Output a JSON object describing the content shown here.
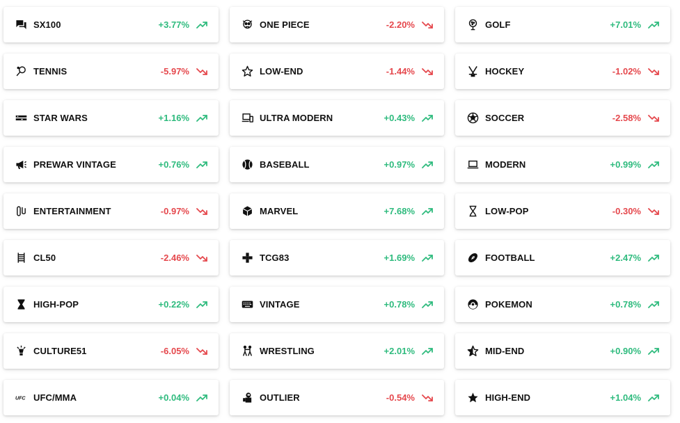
{
  "colors": {
    "up": "#2fbb7e",
    "down": "#e5484d",
    "text": "#111111",
    "card": "#ffffff"
  },
  "columns": [
    [
      {
        "name": "SX100",
        "change": "+3.77%",
        "direction": "up",
        "icon": "chat-bubbles-icon"
      },
      {
        "name": "TENNIS",
        "change": "-5.97%",
        "direction": "down",
        "icon": "tennis-racket-icon"
      },
      {
        "name": "STAR WARS",
        "change": "+1.16%",
        "direction": "up",
        "icon": "star-wars-logo-icon"
      },
      {
        "name": "PREWAR VINTAGE",
        "change": "+0.76%",
        "direction": "up",
        "icon": "megaphone-icon"
      },
      {
        "name": "ENTERTAINMENT",
        "change": "-0.97%",
        "direction": "down",
        "icon": "film-reel-icon"
      },
      {
        "name": "CL50",
        "change": "-2.46%",
        "direction": "down",
        "icon": "ladder-icon"
      },
      {
        "name": "HIGH-POP",
        "change": "+0.22%",
        "direction": "up",
        "icon": "hourglass-filled-icon"
      },
      {
        "name": "CULTURE51",
        "change": "-6.05%",
        "direction": "down",
        "icon": "lightbulb-icon"
      },
      {
        "name": "UFC/MMA",
        "change": "+0.04%",
        "direction": "up",
        "icon": "ufc-logo-icon"
      }
    ],
    [
      {
        "name": "ONE PIECE",
        "change": "-2.20%",
        "direction": "down",
        "icon": "skull-icon"
      },
      {
        "name": "LOW-END",
        "change": "-1.44%",
        "direction": "down",
        "icon": "star-outline-icon"
      },
      {
        "name": "ULTRA MODERN",
        "change": "+0.43%",
        "direction": "up",
        "icon": "devices-icon"
      },
      {
        "name": "BASEBALL",
        "change": "+0.97%",
        "direction": "up",
        "icon": "baseball-icon"
      },
      {
        "name": "MARVEL",
        "change": "+7.68%",
        "direction": "up",
        "icon": "cube-icon"
      },
      {
        "name": "TCG83",
        "change": "+1.69%",
        "direction": "up",
        "icon": "gamepad-icon"
      },
      {
        "name": "VINTAGE",
        "change": "+0.78%",
        "direction": "up",
        "icon": "keyboard-icon"
      },
      {
        "name": "WRESTLING",
        "change": "+2.01%",
        "direction": "up",
        "icon": "wrestlers-icon"
      },
      {
        "name": "OUTLIER",
        "change": "-0.54%",
        "direction": "down",
        "icon": "astronaut-icon"
      }
    ],
    [
      {
        "name": "GOLF",
        "change": "+7.01%",
        "direction": "up",
        "icon": "golf-ball-icon"
      },
      {
        "name": "HOCKEY",
        "change": "-1.02%",
        "direction": "down",
        "icon": "hockey-sticks-icon"
      },
      {
        "name": "SOCCER",
        "change": "-2.58%",
        "direction": "down",
        "icon": "soccer-ball-icon"
      },
      {
        "name": "MODERN",
        "change": "+0.99%",
        "direction": "up",
        "icon": "laptop-icon"
      },
      {
        "name": "LOW-POP",
        "change": "-0.30%",
        "direction": "down",
        "icon": "hourglass-outline-icon"
      },
      {
        "name": "FOOTBALL",
        "change": "+2.47%",
        "direction": "up",
        "icon": "football-icon"
      },
      {
        "name": "POKEMON",
        "change": "+0.78%",
        "direction": "up",
        "icon": "pokeball-icon"
      },
      {
        "name": "MID-END",
        "change": "+0.90%",
        "direction": "up",
        "icon": "star-half-icon"
      },
      {
        "name": "HIGH-END",
        "change": "+1.04%",
        "direction": "up",
        "icon": "star-filled-icon"
      }
    ]
  ]
}
